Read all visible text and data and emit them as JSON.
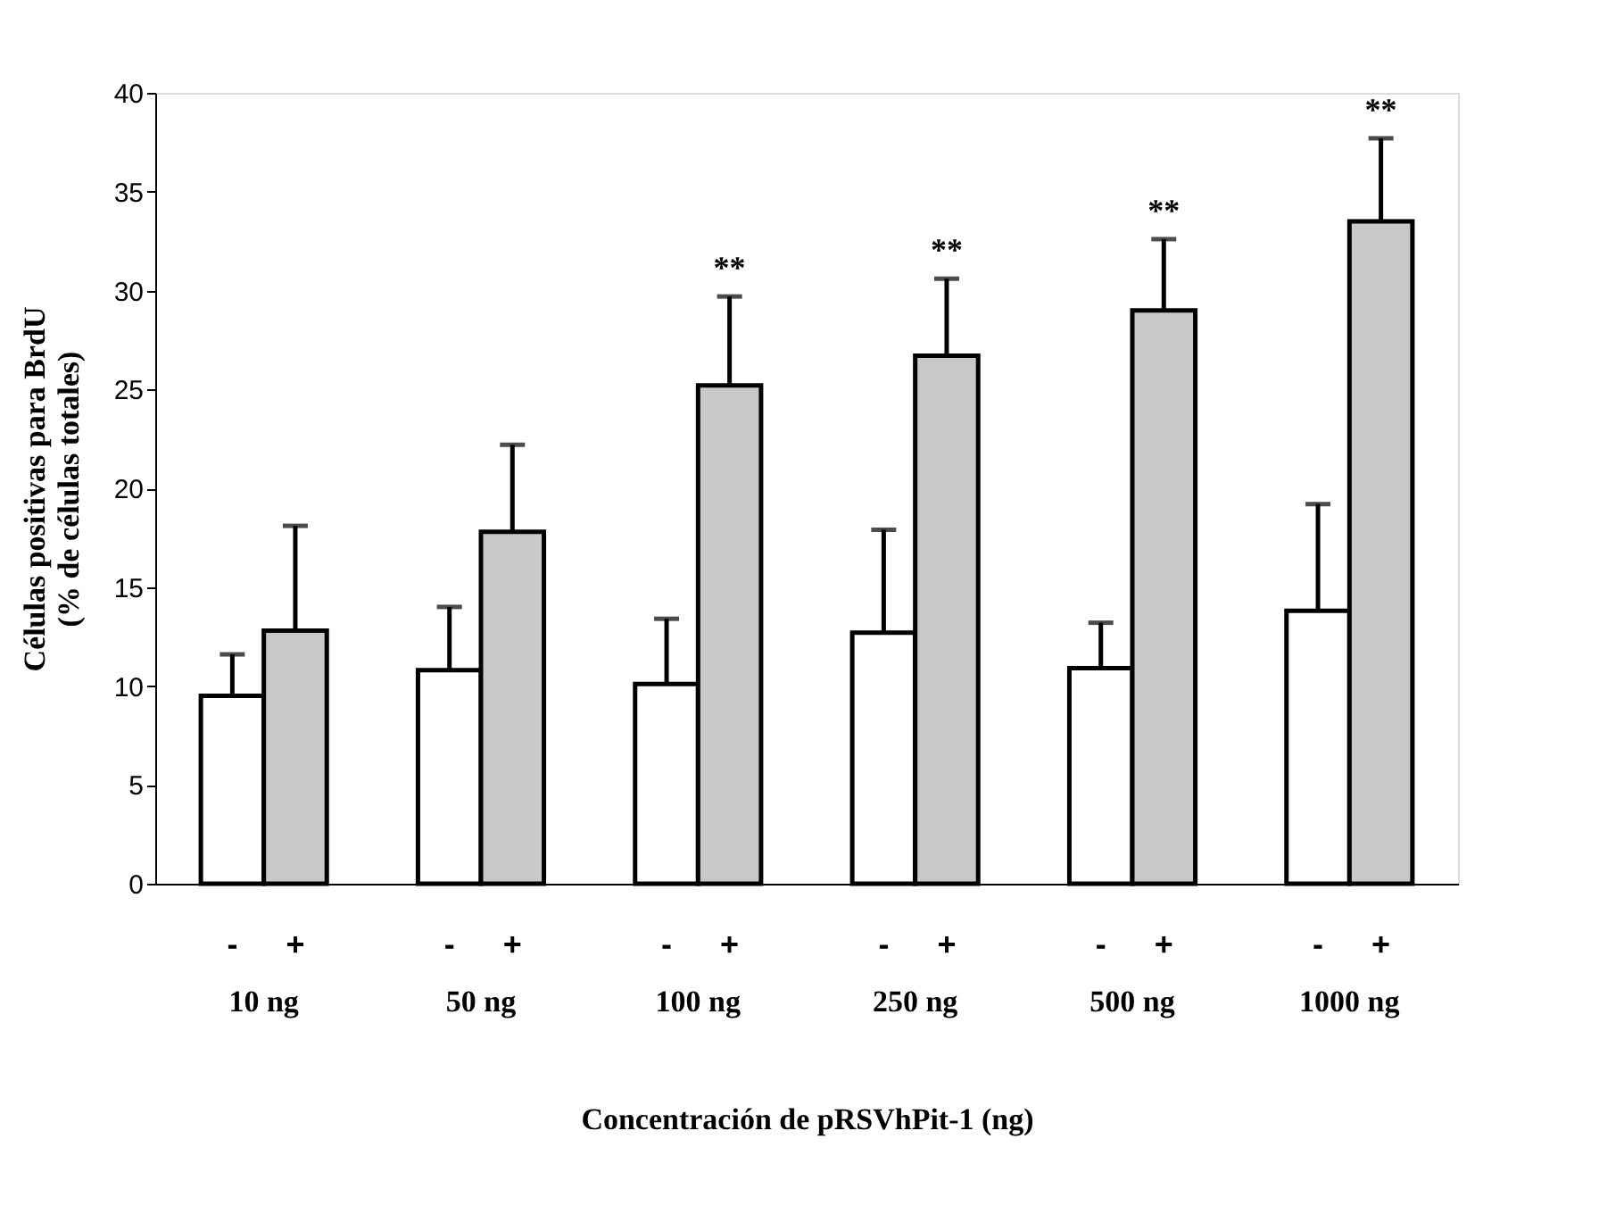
{
  "chart_data": {
    "type": "bar",
    "xlabel": "Concentración de pRSVhPit-1 (ng)",
    "ylabel": "Células positivas para BrdU\n(% de células totales)",
    "categories": [
      "10 ng",
      "50 ng",
      "100 ng",
      "250 ng",
      "500 ng",
      "1000 ng"
    ],
    "series": [
      {
        "name": "-",
        "color": "#ffffff",
        "values": [
          9.5,
          10.8,
          10.1,
          12.7,
          10.9,
          13.8
        ],
        "errors": [
          [
            9.5,
            11.6
          ],
          [
            10.8,
            14.0
          ],
          [
            10.1,
            13.4
          ],
          [
            12.7,
            17.9
          ],
          [
            10.9,
            13.2
          ],
          [
            13.8,
            19.2
          ]
        ]
      },
      {
        "name": "+",
        "color": "#c8c8c8",
        "values": [
          12.8,
          17.8,
          25.2,
          26.7,
          29.0,
          33.5
        ],
        "errors": [
          [
            12.8,
            18.1
          ],
          [
            17.8,
            22.2
          ],
          [
            25.2,
            29.7
          ],
          [
            26.7,
            30.6
          ],
          [
            29.0,
            32.6
          ],
          [
            33.5,
            37.7
          ]
        ],
        "value_labels": [
          null,
          null,
          "**",
          "**",
          "**",
          "**"
        ]
      }
    ],
    "ylim": [
      0,
      40
    ],
    "yticks": [
      0,
      5,
      10,
      15,
      20,
      25,
      30,
      35,
      40
    ],
    "grid": false,
    "legend": false
  }
}
